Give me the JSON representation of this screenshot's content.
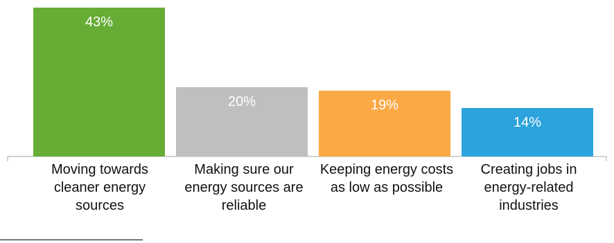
{
  "chart_data": {
    "type": "bar",
    "categories": [
      "Moving towards cleaner energy sources",
      "Making sure our energy sources are reliable",
      "Keeping energy costs as low as possible",
      "Creating jobs in energy-related industries"
    ],
    "values": [
      43,
      20,
      19,
      14
    ],
    "value_labels": [
      "43%",
      "20%",
      "19%",
      "14%"
    ],
    "colors": [
      "#67AC35",
      "#BFBFBF",
      "#FBA945",
      "#2CA3DC"
    ],
    "label_color": "#FFFFFF",
    "ylim": [
      0,
      45
    ],
    "grid": false,
    "legend": "none"
  }
}
